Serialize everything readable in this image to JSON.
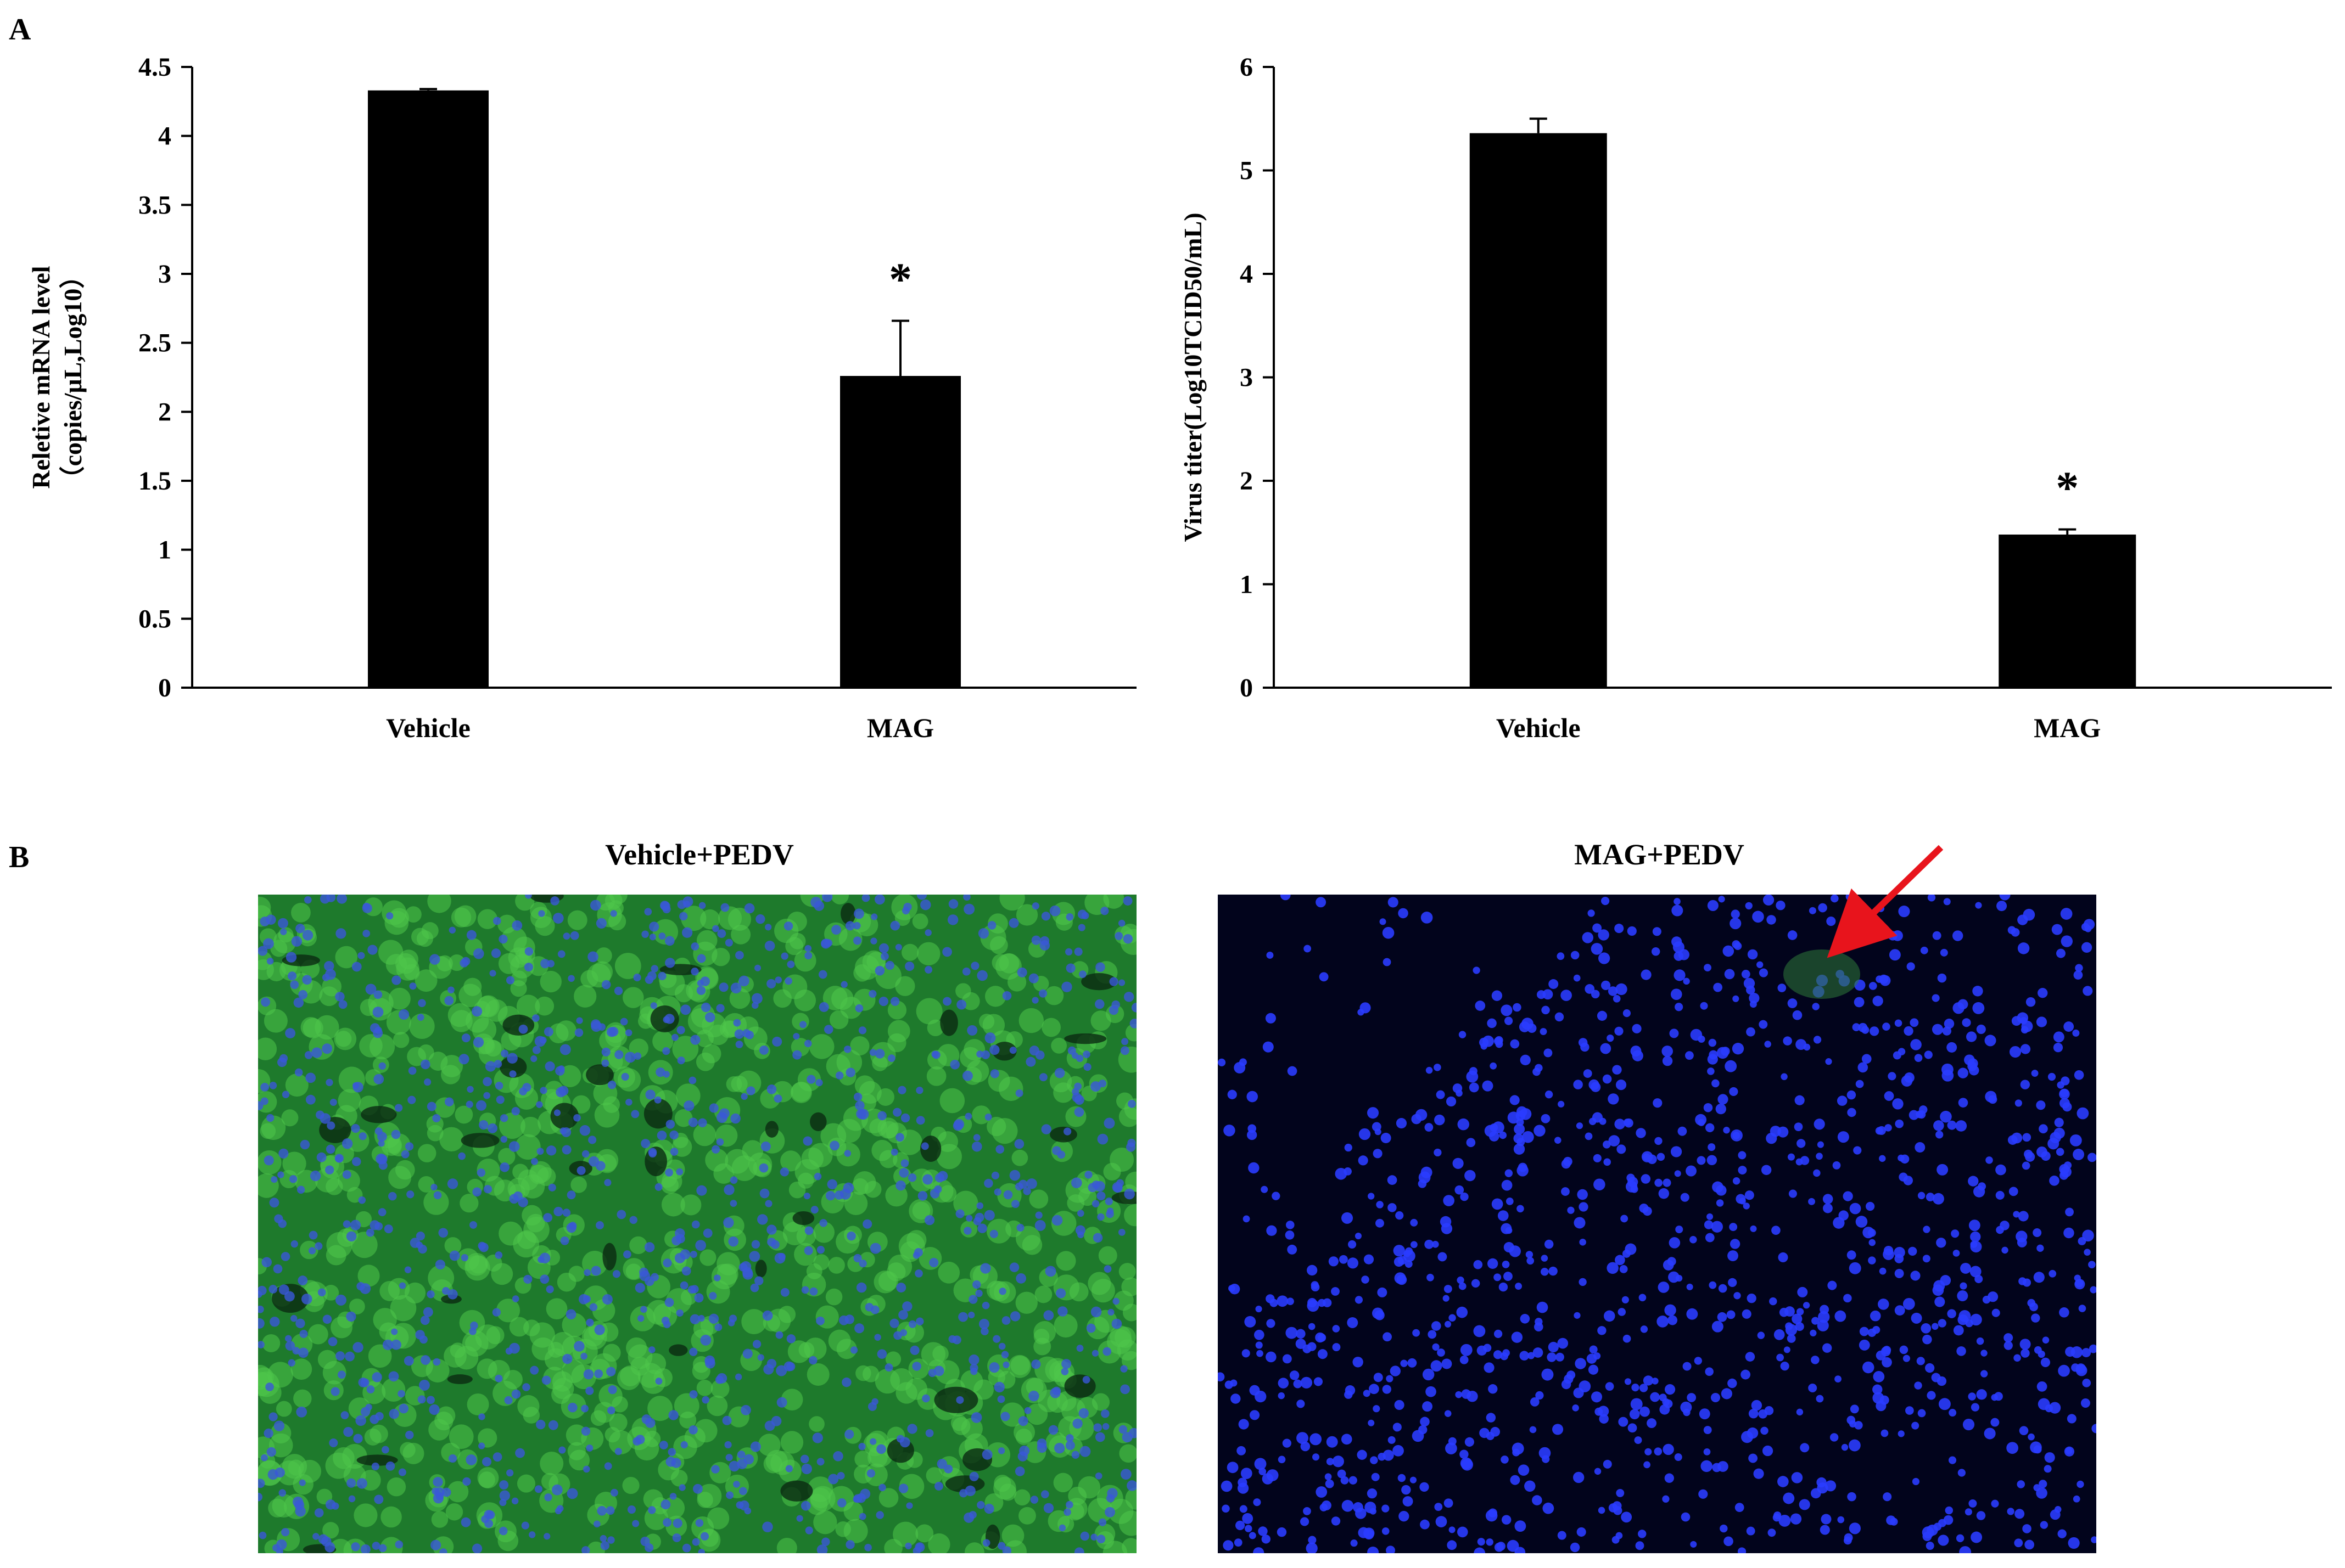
{
  "panel_labels": {
    "a": "A",
    "b": "B"
  },
  "chart_data": [
    {
      "type": "bar",
      "title": "",
      "categories": [
        "Vehicle",
        "MAG"
      ],
      "values": [
        4.33,
        2.26
      ],
      "error": [
        0.01,
        0.4
      ],
      "significance": [
        "",
        "*"
      ],
      "xlabel": "",
      "ylabel": "Reletive mRNA level",
      "ylabel2": "（copies/μL,Log10）",
      "ylim": [
        0,
        4.5
      ],
      "yticks": [
        0,
        0.5,
        1,
        1.5,
        2,
        2.5,
        3,
        3.5,
        4,
        4.5
      ],
      "ytick_labels": [
        "0",
        "0.5",
        "1",
        "1.5",
        "2",
        "2.5",
        "3",
        "3.5",
        "4",
        "4.5"
      ],
      "grid": false,
      "bar_color": "#000000"
    },
    {
      "type": "bar",
      "title": "",
      "categories": [
        "Vehicle",
        "MAG"
      ],
      "values": [
        5.36,
        1.48
      ],
      "error": [
        0.14,
        0.05
      ],
      "significance": [
        "",
        "*"
      ],
      "xlabel": "",
      "ylabel": "Virus titer(Log10TCID50/mL)",
      "ylabel2": "",
      "ylim": [
        0,
        6
      ],
      "yticks": [
        0,
        1,
        2,
        3,
        4,
        5,
        6
      ],
      "ytick_labels": [
        "0",
        "1",
        "2",
        "3",
        "4",
        "5",
        "6"
      ],
      "grid": false,
      "bar_color": "#000000"
    }
  ],
  "images": [
    {
      "title": "Vehicle+PEDV",
      "stain": "green-blue",
      "background": "#1e7a2c"
    },
    {
      "title": "MAG+PEDV",
      "stain": "blue",
      "background": "#02041c"
    }
  ],
  "colors": {
    "arrow": "#e8141c",
    "nuclei": "#2a3cff",
    "green_stain": "#4fc64a"
  }
}
